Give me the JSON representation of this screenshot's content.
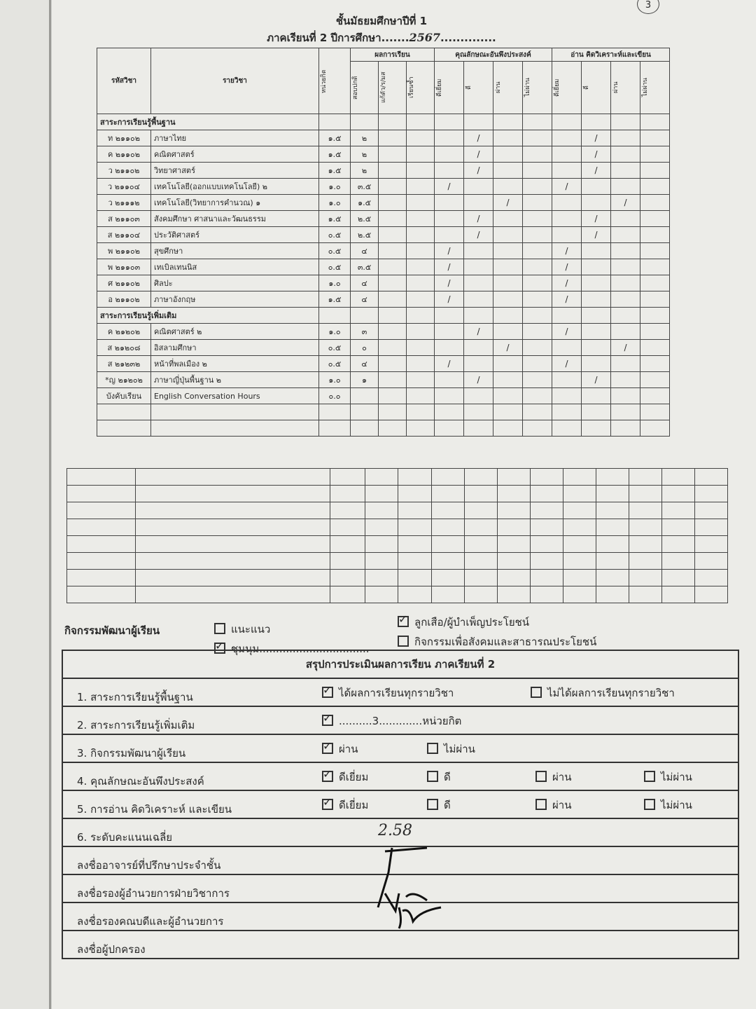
{
  "page_number": "3",
  "header": {
    "title": "ชั้นมัธยมศึกษาปีที่ 1",
    "term_label": "ภาคเรียนที่ 2 ปีการศึกษา",
    "year": "2567"
  },
  "table": {
    "headers": {
      "code": "รหัสวิชา",
      "subject": "รายวิชา",
      "credits": "หน่วยกิต",
      "results": "ผลการเรียน",
      "results_cols": [
        "สอบปกติ",
        "แก้ตัว/ร/มส",
        "เรียนซ้ำ"
      ],
      "character": "คุณลักษณะอันพึงประสงค์",
      "character_cols": [
        "ดีเยี่ยม",
        "ดี",
        "ผ่าน",
        "ไม่ผ่าน"
      ],
      "reading": "อ่าน คิดวิเคราะห์และเขียน",
      "reading_cols": [
        "ดีเยี่ยม",
        "ดี",
        "ผ่าน",
        "ไม่ผ่าน"
      ]
    },
    "sections": [
      {
        "title": "สาระการเรียนรู้พื้นฐาน",
        "rows": [
          {
            "code": "ท ๒๑๑๐๒",
            "subject": "ภาษาไทย",
            "credits": "๑.๕",
            "grade": "๒",
            "character": 1,
            "reading": 1
          },
          {
            "code": "ค ๒๑๑๐๒",
            "subject": "คณิตศาสตร์",
            "credits": "๑.๕",
            "grade": "๒",
            "character": 1,
            "reading": 1
          },
          {
            "code": "ว ๒๑๑๐๒",
            "subject": "วิทยาศาสตร์",
            "credits": "๑.๕",
            "grade": "๒",
            "character": 1,
            "reading": 1
          },
          {
            "code": "ว ๒๑๑๐๔",
            "subject": "เทคโนโลยี(ออกแบบเทคโนโลยี) ๒",
            "credits": "๑.๐",
            "grade": "๓.๕",
            "character": 0,
            "reading": 0
          },
          {
            "code": "ว ๒๑๑๑๒",
            "subject": "เทคโนโลยี(วิทยาการคำนวณ) ๑",
            "credits": "๑.๐",
            "grade": "๑.๕",
            "character": 2,
            "reading": 2
          },
          {
            "code": "ส ๒๑๑๐๓",
            "subject": "สังคมศึกษา ศาสนาและวัฒนธรรม",
            "credits": "๑.๕",
            "grade": "๒.๕",
            "character": 1,
            "reading": 1
          },
          {
            "code": "ส ๒๑๑๐๔",
            "subject": "ประวัติศาสตร์",
            "credits": "๐.๕",
            "grade": "๒.๕",
            "character": 1,
            "reading": 1
          },
          {
            "code": "พ ๒๑๑๐๒",
            "subject": "สุขศึกษา",
            "credits": "๐.๕",
            "grade": "๔",
            "character": 0,
            "reading": 0
          },
          {
            "code": "พ ๒๑๑๐๓",
            "subject": "เทเบิลเทนนิส",
            "credits": "๐.๕",
            "grade": "๓.๕",
            "character": 0,
            "reading": 0
          },
          {
            "code": "ศ ๒๑๑๐๒",
            "subject": "ศิลปะ",
            "credits": "๑.๐",
            "grade": "๔",
            "character": 0,
            "reading": 0
          },
          {
            "code": "อ ๒๑๑๐๒",
            "subject": "ภาษาอังกฤษ",
            "credits": "๑.๕",
            "grade": "๔",
            "character": 0,
            "reading": 0
          }
        ]
      },
      {
        "title": "สาระการเรียนรู้เพิ่มเติม",
        "rows": [
          {
            "code": "ค ๒๑๒๐๒",
            "subject": "คณิตศาสตร์ ๒",
            "credits": "๑.๐",
            "grade": "๓",
            "character": 1,
            "reading": 0
          },
          {
            "code": "ส ๒๑๒๐๘",
            "subject": "อิสลามศึกษา",
            "credits": "๐.๕",
            "grade": "๐",
            "character": 2,
            "reading": 2
          },
          {
            "code": "ส ๒๑๒๓๒",
            "subject": "หน้าที่พลเมือง ๒",
            "credits": "๐.๕",
            "grade": "๔",
            "character": 0,
            "reading": 0
          },
          {
            "code": "*ญ ๒๑๒๐๒",
            "subject": "ภาษาญี่ปุ่นพื้นฐาน ๒",
            "credits": "๑.๐",
            "grade": "๑",
            "character": 1,
            "reading": 1
          },
          {
            "code": "บังคับเรียน",
            "subject": "English Conversation Hours",
            "credits": "๐.๐",
            "grade": "",
            "character": null,
            "reading": null
          }
        ]
      }
    ],
    "mark_symbol": "/"
  },
  "activities": {
    "label": "กิจกรรมพัฒนาผู้เรียน",
    "items": [
      {
        "label": "แนะแนว",
        "checked": false
      },
      {
        "label": "ชุมนุม.................................",
        "checked": true
      },
      {
        "label": "ลูกเสือ/ผู้บำเพ็ญประโยชน์",
        "checked": true
      },
      {
        "label": "กิจกรรมเพื่อสังคมและสาธารณประโยชน์",
        "checked": false
      }
    ]
  },
  "summary": {
    "title": "สรุปการประเมินผลการเรียน ภาคเรียนที่ 2",
    "rows": [
      {
        "label": "1. สาระการเรียนรู้พื้นฐาน",
        "options": [
          {
            "label": "ได้ผลการเรียนทุกรายวิชา",
            "checked": true
          },
          {
            "label": "ไม่ได้ผลการเรียนทุกรายวิชา",
            "checked": false
          }
        ]
      },
      {
        "label": "2. สาระการเรียนรู้เพิ่มเติม",
        "options": [
          {
            "label": "..........3.............หน่วยกิต",
            "checked": true
          }
        ]
      },
      {
        "label": "3. กิจกรรมพัฒนาผู้เรียน",
        "options": [
          {
            "label": "ผ่าน",
            "checked": true
          },
          {
            "label": "ไม่ผ่าน",
            "checked": false
          }
        ]
      },
      {
        "label": "4. คุณลักษณะอันพึงประสงค์",
        "options": [
          {
            "label": "ดีเยี่ยม",
            "checked": true
          },
          {
            "label": "ดี",
            "checked": false
          },
          {
            "label": "ผ่าน",
            "checked": false
          },
          {
            "label": "ไม่ผ่าน",
            "checked": false
          }
        ]
      },
      {
        "label": "5. การอ่าน คิดวิเคราะห์ และเขียน",
        "options": [
          {
            "label": "ดีเยี่ยม",
            "checked": true
          },
          {
            "label": "ดี",
            "checked": false
          },
          {
            "label": "ผ่าน",
            "checked": false
          },
          {
            "label": "ไม่ผ่าน",
            "checked": false
          }
        ]
      },
      {
        "label": "6. ระดับคะแนนเฉลี่ย",
        "value": "2.58"
      },
      {
        "label": "ลงชื่ออาจารย์ที่ปรึกษาประจำชั้น"
      },
      {
        "label": "ลงชื่อรองผู้อำนวยการฝ่ายวิชาการ"
      },
      {
        "label": "ลงชื่อรองคณบดีและผู้อำนวยการ"
      },
      {
        "label": "ลงชื่อผู้ปกครอง"
      }
    ]
  }
}
